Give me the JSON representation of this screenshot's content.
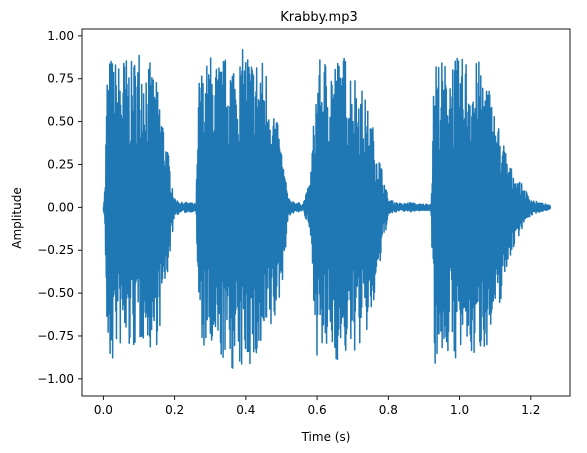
{
  "chart_data": {
    "type": "line",
    "title": "Krabby.mp3",
    "xlabel": "Time (s)",
    "ylabel": "Amplitude",
    "xlim": [
      -0.06,
      1.31
    ],
    "ylim": [
      -1.1,
      1.04
    ],
    "x_ticks": [
      {
        "value": 0.0,
        "label": "0.0"
      },
      {
        "value": 0.2,
        "label": "0.2"
      },
      {
        "value": 0.4,
        "label": "0.4"
      },
      {
        "value": 0.6,
        "label": "0.6"
      },
      {
        "value": 0.8,
        "label": "0.8"
      },
      {
        "value": 1.0,
        "label": "1.0"
      },
      {
        "value": 1.2,
        "label": "1.2"
      }
    ],
    "y_ticks": [
      {
        "value": -1.0,
        "label": "−1.00"
      },
      {
        "value": -0.75,
        "label": "−0.75"
      },
      {
        "value": -0.5,
        "label": "−0.50"
      },
      {
        "value": -0.25,
        "label": "−0.25"
      },
      {
        "value": 0.0,
        "label": "0.00"
      },
      {
        "value": 0.25,
        "label": "0.25"
      },
      {
        "value": 0.5,
        "label": "0.50"
      },
      {
        "value": 0.75,
        "label": "0.75"
      },
      {
        "value": 1.0,
        "label": "1.00"
      }
    ],
    "grid": false,
    "series": [
      {
        "color": "#1f77b4",
        "x": [
          0.0,
          0.005,
          0.01,
          0.02,
          0.04,
          0.06,
          0.08,
          0.1,
          0.12,
          0.14,
          0.16,
          0.18,
          0.2,
          0.22,
          0.24,
          0.26,
          0.27,
          0.28,
          0.29,
          0.3,
          0.32,
          0.34,
          0.36,
          0.38,
          0.4,
          0.42,
          0.44,
          0.46,
          0.48,
          0.5,
          0.52,
          0.54,
          0.56,
          0.58,
          0.6,
          0.62,
          0.64,
          0.66,
          0.68,
          0.7,
          0.72,
          0.74,
          0.76,
          0.78,
          0.8,
          0.82,
          0.84,
          0.86,
          0.88,
          0.9,
          0.92,
          0.93,
          0.94,
          0.96,
          0.98,
          1.0,
          1.02,
          1.04,
          1.06,
          1.08,
          1.1,
          1.12,
          1.14,
          1.16,
          1.18,
          1.2,
          1.22,
          1.24,
          1.255
        ],
        "upper": [
          0.0,
          0.15,
          0.8,
          0.9,
          0.85,
          0.9,
          0.85,
          0.96,
          0.9,
          0.8,
          0.65,
          0.35,
          0.05,
          0.03,
          0.03,
          0.02,
          0.88,
          0.78,
          0.85,
          0.9,
          0.85,
          0.88,
          0.9,
          0.88,
          0.96,
          0.88,
          0.9,
          0.82,
          0.6,
          0.35,
          0.05,
          0.03,
          0.02,
          0.15,
          0.85,
          0.88,
          0.9,
          0.88,
          0.9,
          0.82,
          0.75,
          0.6,
          0.45,
          0.25,
          0.05,
          0.03,
          0.02,
          0.03,
          0.02,
          0.02,
          0.02,
          0.96,
          0.88,
          0.85,
          0.9,
          0.86,
          0.9,
          0.85,
          0.86,
          0.75,
          0.55,
          0.42,
          0.25,
          0.18,
          0.12,
          0.05,
          0.03,
          0.02,
          0.01
        ],
        "lower": [
          0.0,
          -0.15,
          -0.85,
          -0.99,
          -0.8,
          -0.88,
          -0.85,
          -0.82,
          -0.75,
          -0.9,
          -0.7,
          -0.4,
          -0.05,
          -0.03,
          -0.03,
          -0.02,
          -0.85,
          -0.86,
          -0.8,
          -0.9,
          -0.92,
          -0.9,
          -0.95,
          -1.02,
          -0.9,
          -0.95,
          -0.92,
          -0.82,
          -0.7,
          -0.5,
          -0.05,
          -0.03,
          -0.02,
          -0.15,
          -0.88,
          -0.9,
          -0.85,
          -0.92,
          -0.88,
          -0.86,
          -0.82,
          -0.75,
          -0.6,
          -0.3,
          -0.05,
          -0.03,
          -0.02,
          -0.03,
          -0.02,
          -0.02,
          -0.02,
          -0.92,
          -0.9,
          -0.85,
          -0.9,
          -0.88,
          -0.86,
          -0.9,
          -0.84,
          -0.8,
          -0.72,
          -0.5,
          -0.3,
          -0.2,
          -0.1,
          -0.05,
          -0.03,
          -0.02,
          -0.01
        ]
      }
    ]
  }
}
